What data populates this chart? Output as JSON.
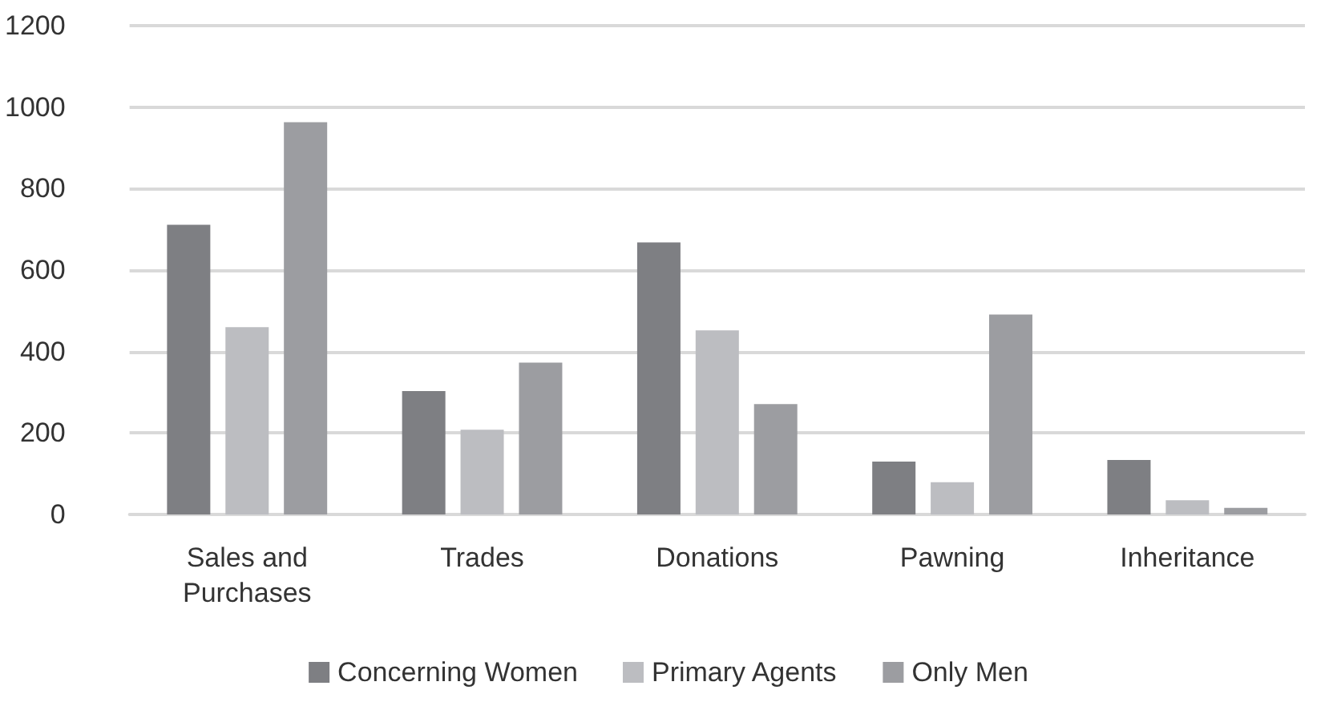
{
  "chart_data": {
    "type": "bar",
    "categories": [
      "Sales and Purchases",
      "Trades",
      "Donations",
      "Pawning",
      "Inheritance"
    ],
    "series": [
      {
        "name": "Concerning Women",
        "color": "#7e7f83",
        "values": [
          711,
          303,
          668,
          130,
          134
        ]
      },
      {
        "name": "Primary Agents",
        "color": "#bcbdc1",
        "values": [
          460,
          208,
          452,
          79,
          35
        ]
      },
      {
        "name": "Only Men",
        "color": "#9c9da1",
        "values": [
          963,
          373,
          271,
          491,
          16
        ]
      }
    ],
    "ylim": [
      0,
      1200
    ],
    "yticks": [
      0,
      200,
      400,
      600,
      800,
      1000,
      1200
    ],
    "grid": "y",
    "legend": "bottom"
  }
}
